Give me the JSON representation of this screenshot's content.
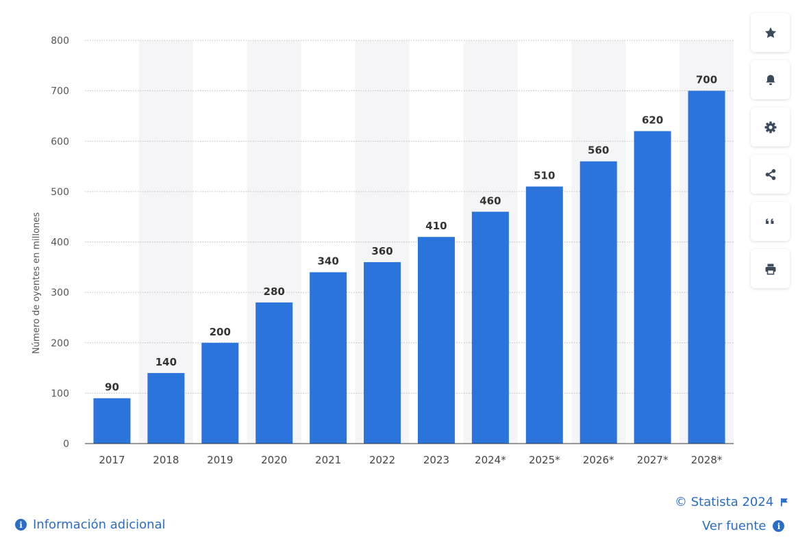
{
  "chart_data": {
    "type": "bar",
    "categories": [
      "2017",
      "2018",
      "2019",
      "2020",
      "2021",
      "2022",
      "2023",
      "2024*",
      "2025*",
      "2026*",
      "2027*",
      "2028*"
    ],
    "values": [
      90,
      140,
      200,
      280,
      340,
      360,
      410,
      460,
      510,
      560,
      620,
      700
    ],
    "title": "",
    "xlabel": "",
    "ylabel": "Número de oyentes en millones",
    "ylim": [
      0,
      800
    ],
    "yticks": [
      0,
      100,
      200,
      300,
      400,
      500,
      600,
      700,
      800
    ],
    "grid": true,
    "bar_color": "#2a74dc",
    "alt_band_color": "#f5f5f7"
  },
  "toolbar": {
    "buttons": [
      {
        "name": "favorite-button",
        "icon": "star-icon"
      },
      {
        "name": "notification-button",
        "icon": "bell-icon"
      },
      {
        "name": "settings-button",
        "icon": "gear-icon"
      },
      {
        "name": "share-button",
        "icon": "share-icon"
      },
      {
        "name": "cite-button",
        "icon": "quote-icon"
      },
      {
        "name": "print-button",
        "icon": "printer-icon"
      }
    ]
  },
  "footer": {
    "info_label": "Información adicional",
    "copyright": "© Statista 2024",
    "source_label": "Ver fuente",
    "link_color": "#2b6cc4"
  }
}
